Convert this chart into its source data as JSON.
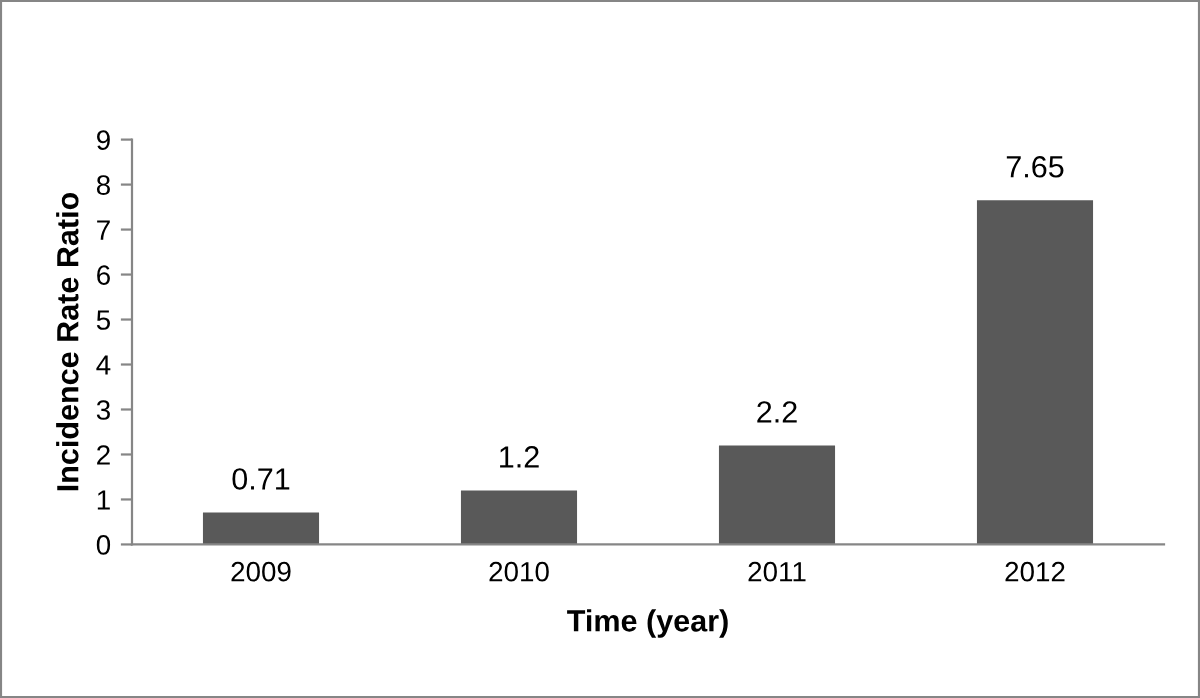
{
  "chart_data": {
    "type": "bar",
    "xlabel": "Time (year)",
    "ylabel": "Incidence Rate Ratio",
    "categories": [
      "2009",
      "2010",
      "2011",
      "2012"
    ],
    "values": [
      0.71,
      1.2,
      2.2,
      7.65
    ],
    "color": "#595959",
    "ylim": [
      0,
      9
    ],
    "yticks": [
      0,
      1,
      2,
      3,
      4,
      5,
      6,
      7,
      8,
      9
    ],
    "grid": false,
    "data_labels": true
  }
}
